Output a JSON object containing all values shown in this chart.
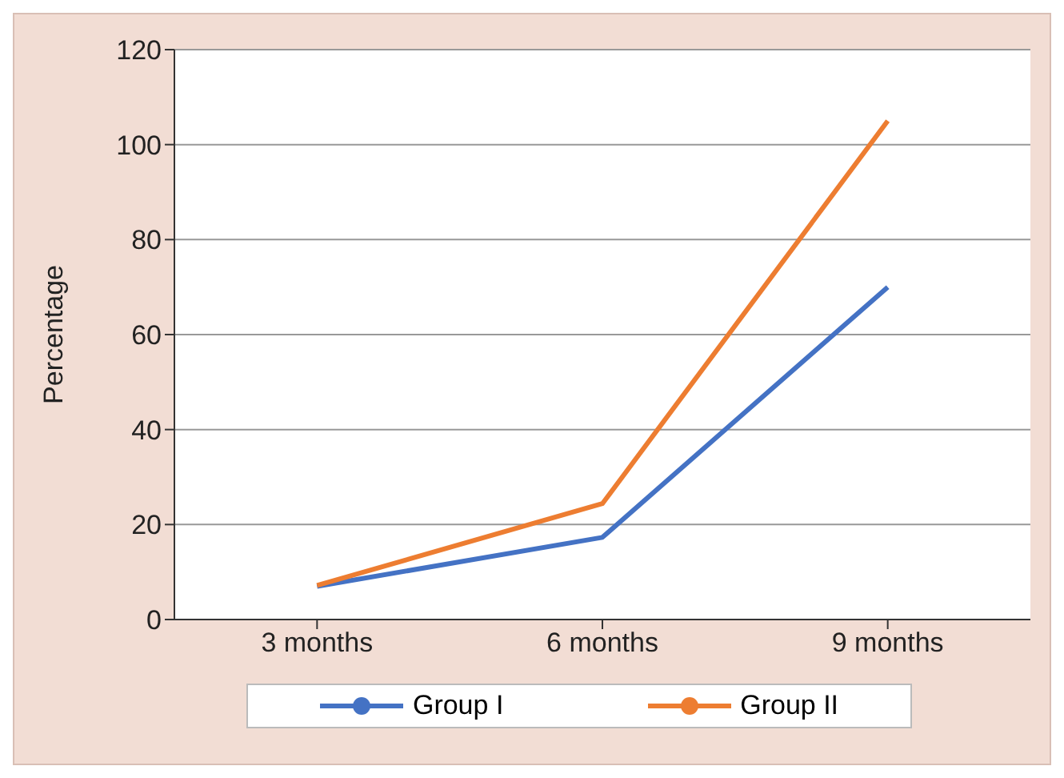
{
  "chart_data": {
    "type": "line",
    "ylabel": "Percentage",
    "categories": [
      "3 months",
      "6 months",
      "9 months"
    ],
    "series": [
      {
        "name": "Group I",
        "color": "#4472c4",
        "values": [
          7,
          17.3,
          70
        ]
      },
      {
        "name": "Group II",
        "color": "#ed7d31",
        "values": [
          7.2,
          24.4,
          105
        ]
      }
    ],
    "ylim": [
      0,
      120
    ],
    "yticks": [
      0,
      20,
      40,
      60,
      80,
      100,
      120
    ],
    "grid": "y",
    "legend": "bottom",
    "marker": "none",
    "line_style": "solid"
  }
}
